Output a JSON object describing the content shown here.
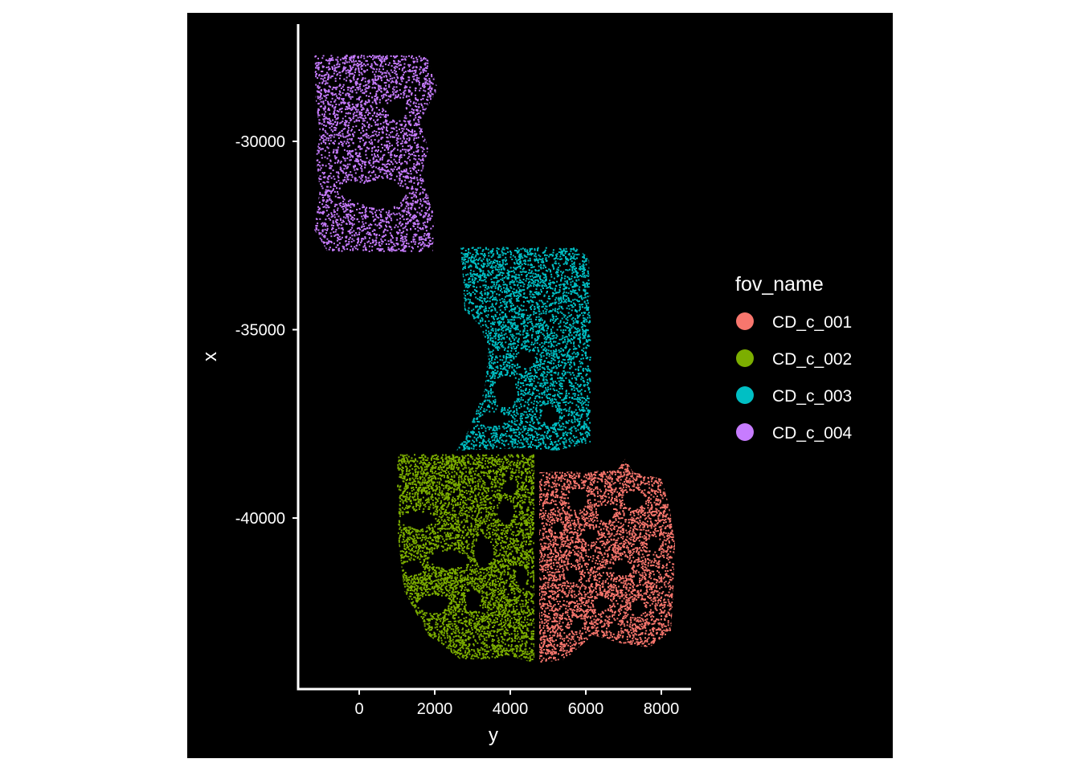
{
  "chart_data": {
    "type": "scatter",
    "title": "",
    "xlabel": "y",
    "ylabel": "x",
    "xlim": [
      -1700,
      8800
    ],
    "ylim": [
      -44600,
      -27000
    ],
    "xticks": [
      0,
      2000,
      4000,
      6000,
      8000
    ],
    "xtick_labels": [
      "0",
      "2000",
      "4000",
      "6000",
      "8000"
    ],
    "yticks": [
      -30000,
      -35000,
      -40000
    ],
    "ytick_labels": [
      "-30000",
      "-35000",
      "-40000"
    ],
    "background": "#000000",
    "axis_color": "#ffffff",
    "grid": false,
    "legend": {
      "title": "fov_name",
      "position": "right",
      "entries": [
        "CD_c_001",
        "CD_c_002",
        "CD_c_003",
        "CD_c_004"
      ]
    },
    "series": [
      {
        "name": "CD_c_001",
        "color": "#F8766D",
        "approx_extent": {
          "y_range": [
            4700,
            8400
          ],
          "x_range": [
            -43800,
            -38300
          ]
        }
      },
      {
        "name": "CD_c_002",
        "color": "#7CAE00",
        "approx_extent": {
          "y_range": [
            1000,
            4700
          ],
          "x_range": [
            -43800,
            -38300
          ]
        }
      },
      {
        "name": "CD_c_003",
        "color": "#00BFC4",
        "approx_extent": {
          "y_range": [
            2500,
            6100
          ],
          "x_range": [
            -38300,
            -32800
          ]
        }
      },
      {
        "name": "CD_c_004",
        "color": "#C77CFF",
        "approx_extent": {
          "y_range": [
            -1200,
            2100
          ],
          "x_range": [
            -32900,
            -27700
          ]
        }
      }
    ]
  }
}
